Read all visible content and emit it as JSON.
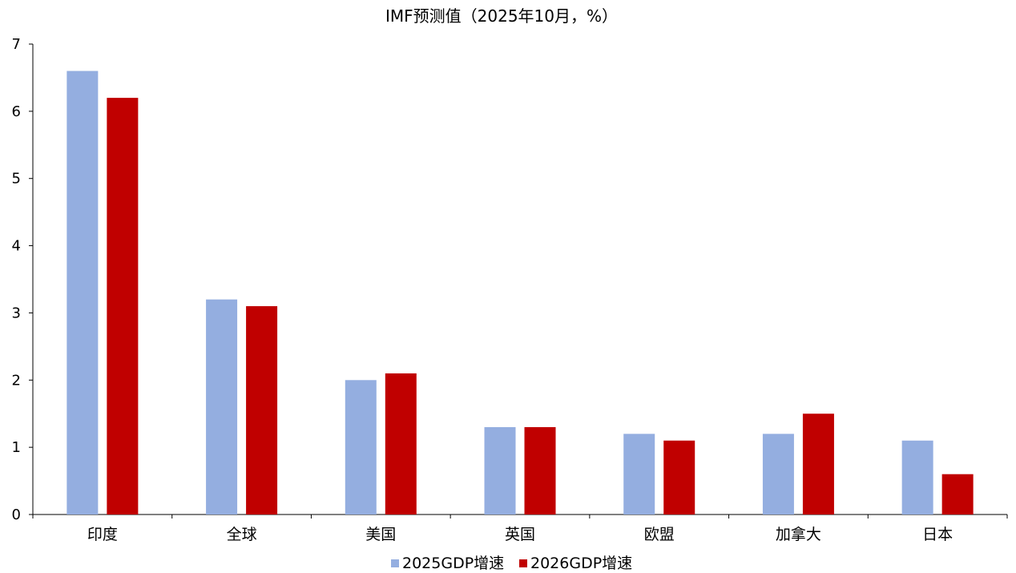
{
  "chart_data": {
    "type": "bar",
    "title": "IMF预测值（2025年10月，%）",
    "categories": [
      "印度",
      "全球",
      "美国",
      "英国",
      "欧盟",
      "加拿大",
      "日本"
    ],
    "series": [
      {
        "name": "2025GDP增速",
        "values": [
          6.6,
          3.2,
          2.0,
          1.3,
          1.2,
          1.2,
          1.1
        ],
        "color": "#94aee0"
      },
      {
        "name": "2026GDP增速",
        "values": [
          6.2,
          3.1,
          2.1,
          1.3,
          1.1,
          1.5,
          0.6
        ],
        "color": "#c00000"
      }
    ],
    "ylim": [
      0,
      7
    ],
    "yticks": [
      "0",
      "1",
      "2",
      "3",
      "4",
      "5",
      "6",
      "7"
    ],
    "grid": false,
    "legend_position": "bottom-center"
  }
}
